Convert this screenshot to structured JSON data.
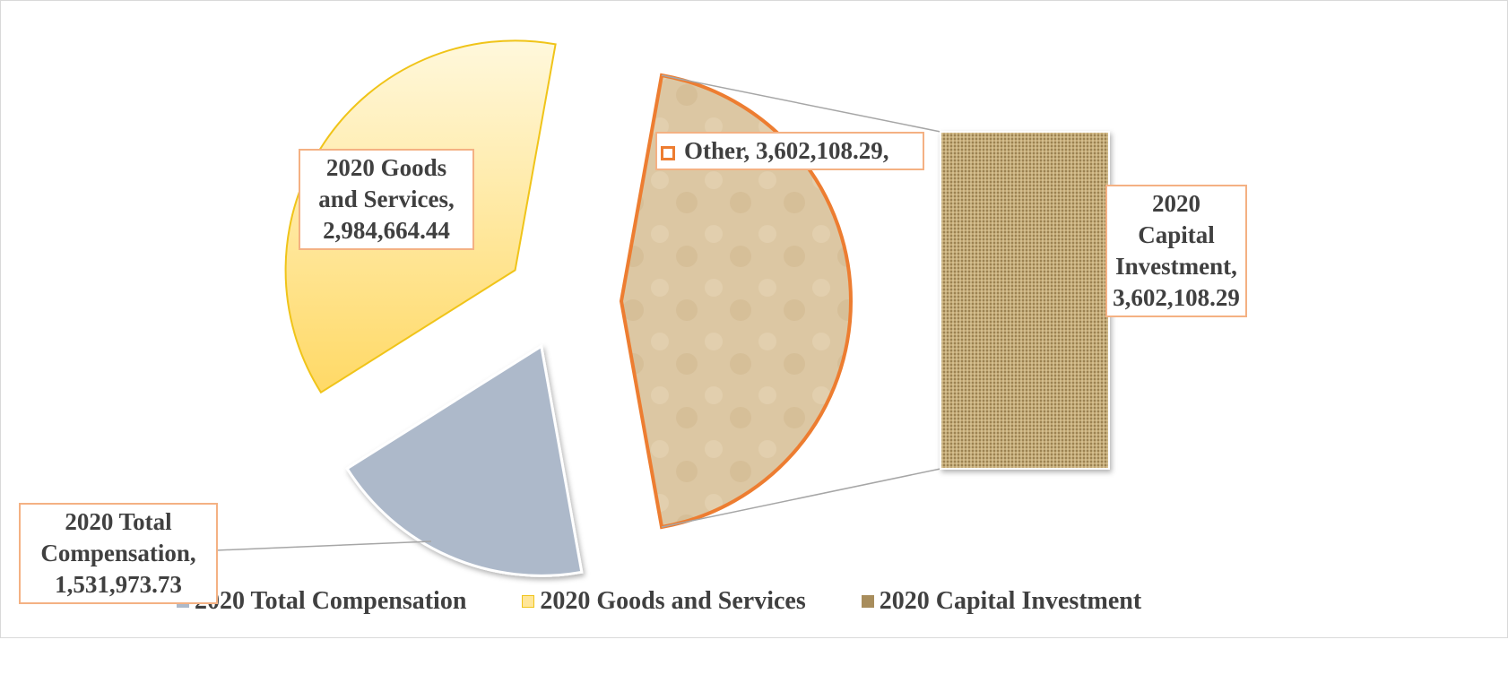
{
  "chart_data": {
    "type": "pie-of-bar",
    "categories": [
      "2020 Total Compensation",
      "2020 Goods and Services",
      "2020 Capital Investment"
    ],
    "values": [
      1531973.73,
      2984664.44,
      3602108.29
    ],
    "value_labels": [
      "2020 Total Compensation, 1,531,973.73",
      "2020 Goods and Services, 2,984,664.44",
      "2020 Capital Investment, 3,602,108.29"
    ],
    "colors": [
      "#adb9ca",
      "#ffd966",
      "#a88d5c"
    ],
    "other": {
      "label": "Other, 3,602,108.29,",
      "value": 3602108.29,
      "color": "#ed7d31"
    }
  }
}
